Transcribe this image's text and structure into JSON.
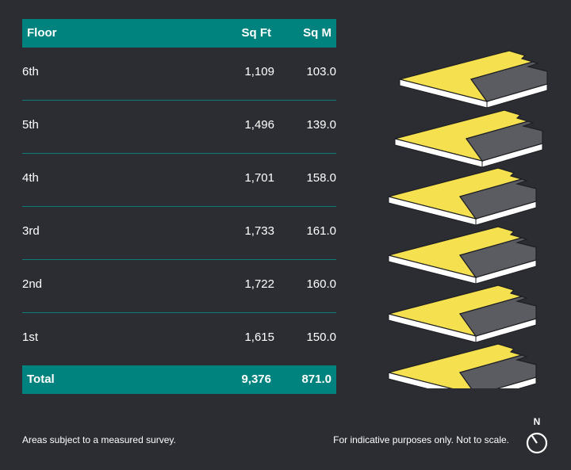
{
  "table": {
    "header": {
      "floor": "Floor",
      "sqft": "Sq Ft",
      "sqm": "Sq M"
    },
    "rows": [
      {
        "floor": "6th",
        "sqft": "1,109",
        "sqm": "103.0"
      },
      {
        "floor": "5th",
        "sqft": "1,496",
        "sqm": "139.0"
      },
      {
        "floor": "4th",
        "sqft": "1,701",
        "sqm": "158.0"
      },
      {
        "floor": "3rd",
        "sqft": "1,733",
        "sqm": "161.0"
      },
      {
        "floor": "2nd",
        "sqft": "1,722",
        "sqm": "160.0"
      },
      {
        "floor": "1st",
        "sqft": "1,615",
        "sqm": "150.0"
      }
    ],
    "total": {
      "floor": "Total",
      "sqft": "9,376",
      "sqm": "871.0"
    }
  },
  "notes": {
    "left": "Areas subject to a measured survey.",
    "right": "For indicative purposes only. Not to scale."
  },
  "compass": {
    "label": "N"
  },
  "colors": {
    "accent": "#00837f",
    "plan_yellow": "#f5e04f",
    "plan_grey": "#5b5c62",
    "background": "#2b2d33"
  }
}
